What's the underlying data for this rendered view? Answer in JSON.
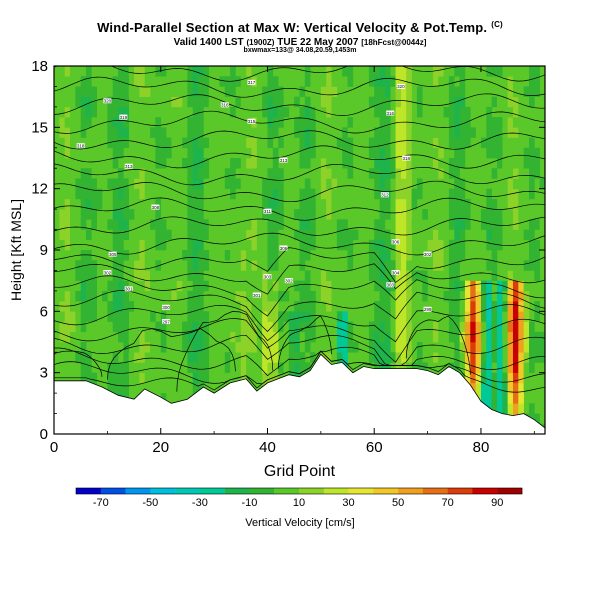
{
  "header": {
    "title": "Wind-Parallel Section at Max W: Vertical Velocity & Pot.Temp.",
    "copyright": "(C)",
    "valid_prefix": "Valid 1400 LST",
    "valid_utc": "(1900Z)",
    "valid_date": "TUE 22 May 2007",
    "valid_run": "[18hFcst@0044z]",
    "bxwmax": "bxwmax=133@ 34.08,20.59,1453m"
  },
  "chart_data": {
    "type": "heatmap",
    "title": "Wind-Parallel Section at Max W: Vertical Velocity & Pot.Temp.",
    "xlabel": "Grid Point",
    "ylabel": "Height [Kft MSL]",
    "xlim": [
      0,
      92
    ],
    "ylim": [
      0,
      18
    ],
    "xticks": [
      0,
      20,
      40,
      60,
      80
    ],
    "yticks": [
      0,
      3,
      6,
      9,
      12,
      15,
      18
    ],
    "colorbar": {
      "label": "Vertical Velocity [cm/s]",
      "tick_labels": [
        -70,
        -50,
        -30,
        -10,
        10,
        30,
        50,
        70,
        90
      ],
      "levels": [
        -80,
        -70,
        -60,
        -50,
        -40,
        -30,
        -20,
        -10,
        0,
        10,
        20,
        30,
        40,
        50,
        60,
        70,
        80,
        90,
        100
      ],
      "colors": [
        "#0000c8",
        "#0050e6",
        "#0096f0",
        "#00bedc",
        "#00c8b4",
        "#00c896",
        "#1eb44b",
        "#32b432",
        "#5ac828",
        "#8cd228",
        "#bee628",
        "#e6e632",
        "#f0c828",
        "#f0a01e",
        "#e66e14",
        "#dc3c0a",
        "#c80000",
        "#a00000"
      ]
    },
    "terrain": {
      "x": [
        0,
        3,
        6,
        9,
        12,
        15,
        17,
        20,
        22,
        25,
        28,
        30,
        33,
        36,
        38,
        40,
        42,
        44,
        46,
        48,
        50,
        52,
        54,
        56,
        58,
        60,
        64,
        68,
        70,
        72,
        74,
        76,
        78,
        80,
        82,
        84,
        86,
        88,
        90,
        92
      ],
      "y": [
        2.6,
        2.6,
        2.6,
        2.3,
        1.9,
        1.7,
        2.2,
        1.8,
        1.5,
        1.7,
        2.3,
        2.0,
        2.5,
        2.7,
        2.1,
        2.5,
        2.7,
        2.9,
        2.8,
        3.1,
        3.9,
        3.4,
        3.5,
        3.0,
        3.3,
        3.2,
        3.2,
        3.2,
        3.1,
        2.9,
        3.3,
        3.0,
        2.4,
        1.6,
        1.2,
        1.0,
        0.9,
        1.0,
        0.7,
        0.3
      ]
    },
    "isentrope_labels": [
      {
        "text": "320",
        "x": 10,
        "y": 16.3
      },
      {
        "text": "319",
        "x": 13,
        "y": 15.5
      },
      {
        "text": "318",
        "x": 5,
        "y": 14.1
      },
      {
        "text": "316",
        "x": 32,
        "y": 16.1
      },
      {
        "text": "317",
        "x": 37,
        "y": 17.2
      },
      {
        "text": "315",
        "x": 37,
        "y": 15.3
      },
      {
        "text": "313",
        "x": 14,
        "y": 13.1
      },
      {
        "text": "313",
        "x": 43,
        "y": 13.4
      },
      {
        "text": "308",
        "x": 19,
        "y": 11.1
      },
      {
        "text": "311",
        "x": 40,
        "y": 10.9
      },
      {
        "text": "312",
        "x": 62,
        "y": 11.7
      },
      {
        "text": "316",
        "x": 63,
        "y": 15.7
      },
      {
        "text": "318",
        "x": 66,
        "y": 13.5
      },
      {
        "text": "320",
        "x": 65,
        "y": 17.0
      },
      {
        "text": "305",
        "x": 11,
        "y": 8.8
      },
      {
        "text": "302",
        "x": 10,
        "y": 7.9
      },
      {
        "text": "301",
        "x": 14,
        "y": 7.1
      },
      {
        "text": "300",
        "x": 21,
        "y": 6.2
      },
      {
        "text": "297",
        "x": 21,
        "y": 5.5
      },
      {
        "text": "306",
        "x": 43,
        "y": 9.1
      },
      {
        "text": "303",
        "x": 40,
        "y": 7.7
      },
      {
        "text": "302",
        "x": 44,
        "y": 7.5
      },
      {
        "text": "301",
        "x": 38,
        "y": 6.8
      },
      {
        "text": "306",
        "x": 64,
        "y": 9.4
      },
      {
        "text": "304",
        "x": 64,
        "y": 7.9
      },
      {
        "text": "303",
        "x": 63,
        "y": 7.3
      },
      {
        "text": "302",
        "x": 70,
        "y": 8.8
      },
      {
        "text": "299",
        "x": 70,
        "y": 6.1
      }
    ]
  }
}
